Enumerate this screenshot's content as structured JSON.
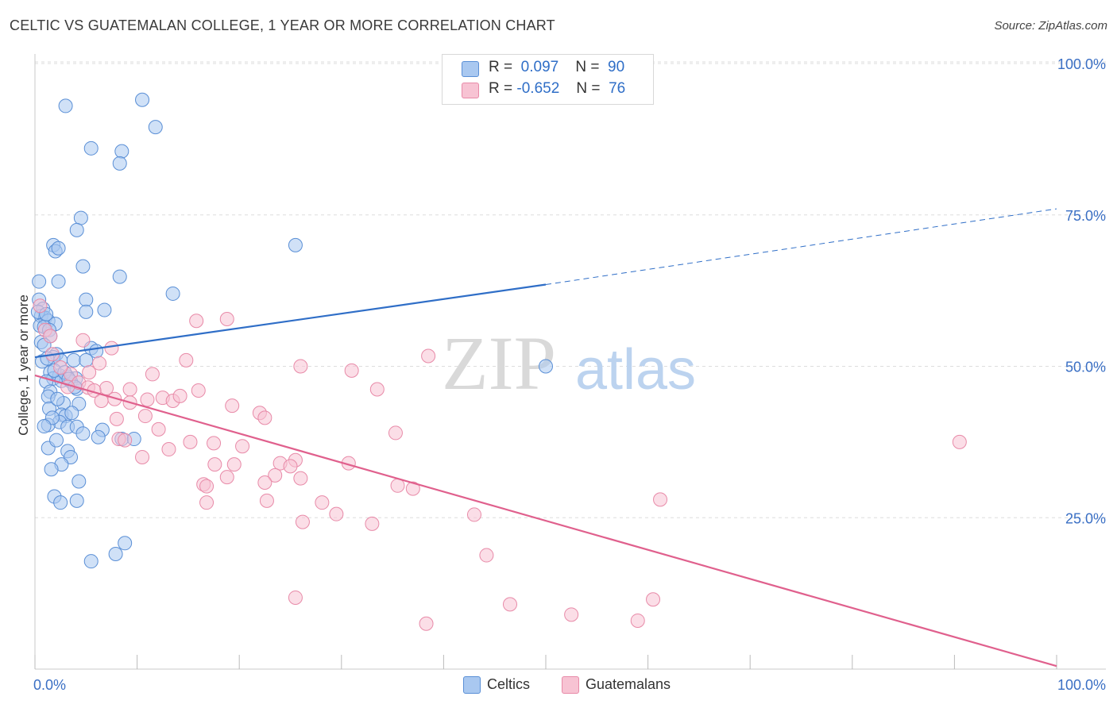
{
  "header": {
    "title": "CELTIC VS GUATEMALAN COLLEGE, 1 YEAR OR MORE CORRELATION CHART",
    "source": "Source: ZipAtlas.com"
  },
  "watermark": {
    "zip": "ZIP",
    "atlas": "atlas"
  },
  "legend": {
    "rows": [
      {
        "r_label": "R =",
        "r_value": "0.097",
        "n_label": "N =",
        "n_value": "90",
        "color": "#a9c8f0"
      },
      {
        "r_label": "R =",
        "r_value": "-0.652",
        "n_label": "N =",
        "n_value": "76",
        "color": "#f7b6cb"
      }
    ]
  },
  "bottom_legend": {
    "celtics": "Celtics",
    "guatemalans": "Guatemalans"
  },
  "colors": {
    "celtic_fill": "#a9c8f0",
    "celtic_stroke": "#5a8fd6",
    "celtic_line": "#2f6ec7",
    "guat_fill": "#f7c3d3",
    "guat_stroke": "#e88aa8",
    "guat_line": "#e0608d",
    "grid": "#dddddd",
    "tick_text": "#3a6fc4"
  },
  "chart_data": {
    "type": "scatter",
    "title": "CELTIC VS GUATEMALAN COLLEGE, 1 YEAR OR MORE CORRELATION CHART",
    "xlabel": "",
    "ylabel": "College, 1 year or more",
    "xlim": [
      0,
      100
    ],
    "ylim": [
      0,
      100
    ],
    "x_tick_labels": [
      "0.0%",
      "100.0%"
    ],
    "y_ticks": [
      25,
      50,
      75,
      100
    ],
    "y_tick_labels": [
      "25.0%",
      "50.0%",
      "75.0%",
      "100.0%"
    ],
    "series": [
      {
        "name": "Celtics",
        "r": 0.097,
        "n": 90,
        "trend": {
          "x0": 0,
          "y0": 51.5,
          "x1": 50,
          "y1": 63.5,
          "dash_x1": 100,
          "dash_y1": 76
        },
        "points": [
          [
            3,
            93
          ],
          [
            10.5,
            94
          ],
          [
            11.8,
            89.5
          ],
          [
            5.5,
            86
          ],
          [
            8.5,
            85.5
          ],
          [
            8.3,
            83.5
          ],
          [
            4.5,
            74.5
          ],
          [
            4.1,
            72.5
          ],
          [
            1.8,
            70
          ],
          [
            2,
            69
          ],
          [
            2.3,
            69.5
          ],
          [
            25.5,
            70
          ],
          [
            4.7,
            66.5
          ],
          [
            8.3,
            64.8
          ],
          [
            2.3,
            64
          ],
          [
            0.4,
            64
          ],
          [
            13.5,
            62
          ],
          [
            5,
            61
          ],
          [
            0.4,
            61
          ],
          [
            6.8,
            59.3
          ],
          [
            0.8,
            59.5
          ],
          [
            5,
            59
          ],
          [
            0.6,
            58.3
          ],
          [
            1,
            58
          ],
          [
            1.3,
            57.5
          ],
          [
            0.5,
            56.7
          ],
          [
            2,
            57
          ],
          [
            0.9,
            56.5
          ],
          [
            1.4,
            56
          ],
          [
            1.5,
            55
          ],
          [
            0.6,
            54
          ],
          [
            0.9,
            53.5
          ],
          [
            5.5,
            53
          ],
          [
            6,
            52.5
          ],
          [
            2.1,
            52
          ],
          [
            1.8,
            51.5
          ],
          [
            2.5,
            51
          ],
          [
            3.8,
            51
          ],
          [
            5,
            51
          ],
          [
            1.5,
            49
          ],
          [
            2.4,
            48.5
          ],
          [
            3.2,
            48.3
          ],
          [
            4,
            48
          ],
          [
            1.8,
            48
          ],
          [
            1.1,
            47.5
          ],
          [
            2.6,
            47.6
          ],
          [
            3.5,
            47.5
          ],
          [
            4.1,
            46.3
          ],
          [
            1.5,
            45.8
          ],
          [
            1.3,
            45
          ],
          [
            4.3,
            43.8
          ],
          [
            2.8,
            43.9
          ],
          [
            1.4,
            43
          ],
          [
            2.6,
            42
          ],
          [
            3,
            41.8
          ],
          [
            2.4,
            40.8
          ],
          [
            1.3,
            40.3
          ],
          [
            3.2,
            40
          ],
          [
            4.1,
            40
          ],
          [
            6.6,
            39.5
          ],
          [
            8.5,
            38
          ],
          [
            9.7,
            38
          ],
          [
            1.3,
            36.5
          ],
          [
            3.2,
            36
          ],
          [
            3.5,
            35
          ],
          [
            2.6,
            33.8
          ],
          [
            1.6,
            33
          ],
          [
            4.3,
            31
          ],
          [
            1.9,
            28.5
          ],
          [
            4.1,
            27.8
          ],
          [
            2.5,
            27.5
          ],
          [
            8.8,
            20.8
          ],
          [
            7.9,
            19
          ],
          [
            5.5,
            17.8
          ],
          [
            50,
            50
          ],
          [
            0.3,
            59
          ],
          [
            1.1,
            58.6
          ],
          [
            1.9,
            49.3
          ],
          [
            2.9,
            49
          ],
          [
            3.3,
            47.9
          ],
          [
            0.7,
            50.8
          ],
          [
            1.2,
            51.3
          ],
          [
            3.9,
            46.6
          ],
          [
            2.2,
            44.6
          ],
          [
            1.7,
            41.5
          ],
          [
            0.9,
            40.1
          ],
          [
            3.6,
            42.3
          ],
          [
            2.1,
            37.8
          ],
          [
            4.7,
            38.9
          ],
          [
            6.2,
            38.3
          ]
        ]
      },
      {
        "name": "Guatemalans",
        "r": -0.652,
        "n": 76,
        "trend": {
          "x0": 0,
          "y0": 48.5,
          "x1": 100,
          "y1": 0.5
        },
        "points": [
          [
            0.5,
            60
          ],
          [
            1,
            56
          ],
          [
            1.5,
            55
          ],
          [
            4.7,
            54.3
          ],
          [
            7.5,
            53
          ],
          [
            1.7,
            52
          ],
          [
            38.5,
            51.7
          ],
          [
            6.3,
            50.5
          ],
          [
            14.8,
            51
          ],
          [
            26,
            50
          ],
          [
            31,
            49.3
          ],
          [
            5.3,
            49
          ],
          [
            11.5,
            48.7
          ],
          [
            3.5,
            48.7
          ],
          [
            4.3,
            47.3
          ],
          [
            5.2,
            46.5
          ],
          [
            7,
            46.4
          ],
          [
            5.8,
            46
          ],
          [
            9.3,
            46.2
          ],
          [
            12.5,
            44.8
          ],
          [
            13.5,
            44.3
          ],
          [
            9.3,
            44
          ],
          [
            11,
            44.5
          ],
          [
            16,
            46
          ],
          [
            33.5,
            46.2
          ],
          [
            6.5,
            44.3
          ],
          [
            19.3,
            43.5
          ],
          [
            22,
            42.3
          ],
          [
            10.8,
            41.8
          ],
          [
            22.5,
            41.5
          ],
          [
            8,
            41.3
          ],
          [
            35.3,
            39
          ],
          [
            8.2,
            38
          ],
          [
            8.8,
            37.8
          ],
          [
            15.2,
            37.5
          ],
          [
            17.5,
            37.3
          ],
          [
            20.3,
            36.8
          ],
          [
            13.1,
            36.3
          ],
          [
            10.5,
            35
          ],
          [
            25.5,
            34.5
          ],
          [
            24,
            34
          ],
          [
            30.7,
            34
          ],
          [
            17.6,
            33.8
          ],
          [
            19.5,
            33.8
          ],
          [
            25,
            33.5
          ],
          [
            23.5,
            32
          ],
          [
            18.8,
            31.7
          ],
          [
            26,
            31.5
          ],
          [
            22.5,
            30.8
          ],
          [
            16.5,
            30.5
          ],
          [
            16.8,
            30.2
          ],
          [
            35.5,
            30.3
          ],
          [
            37,
            29.8
          ],
          [
            22.7,
            27.8
          ],
          [
            28.1,
            27.5
          ],
          [
            16.8,
            27.5
          ],
          [
            29.5,
            25.6
          ],
          [
            43,
            25.5
          ],
          [
            26.2,
            24.3
          ],
          [
            33,
            24
          ],
          [
            44.2,
            18.8
          ],
          [
            25.5,
            11.8
          ],
          [
            46.5,
            10.7
          ],
          [
            52.5,
            9
          ],
          [
            59,
            8
          ],
          [
            38.3,
            7.5
          ],
          [
            60.5,
            11.5
          ],
          [
            61.2,
            28
          ],
          [
            90.5,
            37.5
          ],
          [
            18.8,
            57.8
          ],
          [
            15.8,
            57.5
          ],
          [
            3.2,
            46.6
          ],
          [
            2.5,
            49.8
          ],
          [
            7.8,
            44.6
          ],
          [
            14.2,
            45.1
          ],
          [
            12.1,
            39.6
          ]
        ]
      }
    ]
  }
}
